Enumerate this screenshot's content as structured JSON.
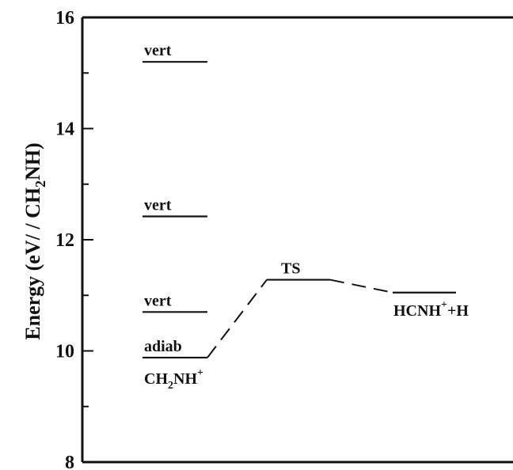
{
  "chart_data": {
    "type": "energy-level-diagram",
    "ylabel": {
      "prefix": "Energy (eV/ / CH",
      "sub": "2",
      "suffix": "NH)"
    },
    "ylim": [
      8,
      16
    ],
    "yticks": [
      8,
      10,
      12,
      14,
      16
    ],
    "grid": false,
    "levels": [
      {
        "name": "vert",
        "y": 15.2,
        "column": 0,
        "label_position": "above"
      },
      {
        "name": "vert",
        "y": 12.42,
        "column": 0,
        "label_position": "above"
      },
      {
        "name": "vert",
        "y": 10.7,
        "column": 0,
        "label_position": "above"
      },
      {
        "name": "adiab",
        "y": 9.88,
        "column": 0,
        "label_position": "above"
      },
      {
        "name": "TS",
        "y": 11.28,
        "column": 1,
        "label_position": "above"
      },
      {
        "name": "HCNH+ + H",
        "y": 11.05,
        "column": 2,
        "label_position": "below"
      }
    ],
    "species_labels": {
      "ch2nh": {
        "base": "CH",
        "sub": "2",
        "mid": "NH",
        "sup": "+"
      },
      "hcnh": {
        "base": "HCNH",
        "sup": "+",
        "tail": "+H"
      }
    },
    "pathway": [
      {
        "from": "adiab",
        "to": "TS",
        "style": "dashed"
      },
      {
        "from": "TS",
        "to": "HCNH+ + H",
        "style": "dashed"
      }
    ]
  }
}
